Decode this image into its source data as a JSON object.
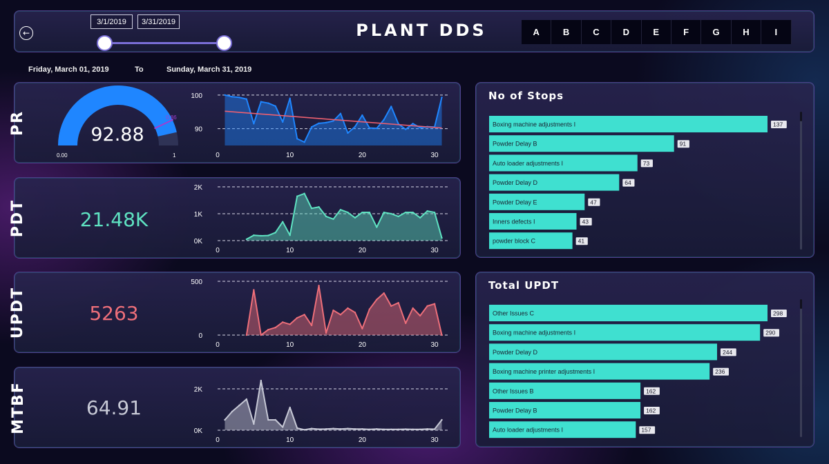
{
  "header": {
    "title": "PLANT DDS",
    "back_icon": "arrow-left-icon",
    "date_start": "3/1/2019",
    "date_end": "3/31/2019",
    "filters": [
      "A",
      "B",
      "C",
      "D",
      "E",
      "F",
      "G",
      "H",
      "I"
    ]
  },
  "range": {
    "from_text": "Friday, March 01, 2019",
    "to_label": "To",
    "to_text": "Sunday, March 31, 2019"
  },
  "colors": {
    "pr": "#1f86ff",
    "pdt": "#5fe3c2",
    "updt": "#ee6f7a",
    "mtbf": "#c7c9d6",
    "bar": "#3fe0d0",
    "trend": "#ee6070"
  },
  "kpis": {
    "pr": {
      "label": "PR",
      "value": "92.88",
      "gauge_min": "0.00",
      "gauge_max": "1",
      "gauge_target": "0.86",
      "gauge_fill": 0.9288,
      "gauge_target_fraction": 0.86
    },
    "pdt": {
      "label": "PDT",
      "value": "21.48K"
    },
    "updt": {
      "label": "UPDT",
      "value": "5263"
    },
    "mtbf": {
      "label": "MTBF",
      "value": "64.91"
    }
  },
  "chart_data": [
    {
      "id": "pr",
      "type": "area",
      "x": [
        1,
        2,
        3,
        4,
        5,
        6,
        7,
        8,
        9,
        10,
        11,
        12,
        13,
        14,
        15,
        16,
        17,
        18,
        19,
        20,
        21,
        22,
        23,
        24,
        25,
        26,
        27,
        28,
        29,
        30,
        31
      ],
      "values": [
        100,
        99.5,
        99.3,
        98.8,
        91.5,
        98,
        97.6,
        96.7,
        92,
        99,
        87,
        86,
        90.5,
        91.6,
        91.8,
        92.3,
        94.5,
        88.7,
        90.6,
        94,
        90.2,
        90.1,
        92.7,
        96.6,
        91.4,
        89.8,
        91.5,
        90.3,
        90.6,
        90.5,
        99.3
      ],
      "trend": [
        95.2,
        90.2
      ],
      "ylim": [
        85,
        101
      ],
      "yticks": [
        90,
        100
      ],
      "xticks": [
        0,
        10,
        20,
        30
      ],
      "xlim": [
        0,
        32
      ]
    },
    {
      "id": "pdt",
      "type": "area",
      "x": [
        4,
        5,
        6,
        7,
        8,
        9,
        10,
        11,
        12,
        13,
        14,
        15,
        16,
        17,
        18,
        19,
        20,
        21,
        22,
        23,
        24,
        25,
        26,
        27,
        28,
        29,
        30,
        31
      ],
      "values": [
        50,
        200,
        180,
        190,
        300,
        700,
        200,
        1650,
        1750,
        1200,
        1250,
        900,
        800,
        1150,
        1050,
        850,
        1050,
        1050,
        500,
        1050,
        1000,
        900,
        1050,
        1050,
        850,
        1100,
        1050,
        100
      ],
      "ylim": [
        0,
        2000
      ],
      "yticks": [
        0,
        1000,
        2000
      ],
      "ytick_labels": [
        "0K",
        "1K",
        "2K"
      ],
      "xticks": [
        0,
        10,
        20,
        30
      ],
      "xlim": [
        0,
        32
      ]
    },
    {
      "id": "updt",
      "type": "area",
      "x": [
        4,
        5,
        6,
        7,
        8,
        9,
        10,
        11,
        12,
        13,
        14,
        15,
        16,
        17,
        18,
        19,
        20,
        21,
        22,
        23,
        24,
        25,
        26,
        27,
        28,
        29,
        30,
        31
      ],
      "values": [
        0,
        420,
        0,
        50,
        70,
        120,
        100,
        160,
        190,
        90,
        460,
        20,
        230,
        190,
        250,
        210,
        60,
        240,
        330,
        390,
        270,
        300,
        110,
        250,
        180,
        270,
        290,
        0
      ],
      "ylim": [
        0,
        500
      ],
      "yticks": [
        0,
        500
      ],
      "xticks": [
        0,
        10,
        20,
        30
      ],
      "xlim": [
        0,
        32
      ]
    },
    {
      "id": "mtbf",
      "type": "area",
      "x": [
        1,
        2,
        3,
        4,
        5,
        6,
        7,
        8,
        9,
        10,
        11,
        12,
        13,
        14,
        15,
        16,
        17,
        18,
        19,
        20,
        21,
        22,
        23,
        24,
        25,
        26,
        27,
        28,
        29,
        30,
        31
      ],
      "values": [
        500,
        900,
        1200,
        1500,
        300,
        2400,
        500,
        500,
        150,
        1100,
        100,
        20,
        80,
        50,
        60,
        80,
        60,
        80,
        60,
        60,
        40,
        60,
        40,
        40,
        40,
        50,
        40,
        40,
        60,
        50,
        500
      ],
      "ylim": [
        0,
        2600
      ],
      "yticks": [
        0,
        2000
      ],
      "ytick_labels": [
        "0K",
        "2K"
      ],
      "xticks": [
        0,
        10,
        20,
        30
      ],
      "xlim": [
        0,
        32
      ]
    },
    {
      "id": "stops",
      "type": "bar",
      "title": "No of Stops",
      "categories": [
        "Boxing machine adjustments I",
        "Powder Delay B",
        "Auto loader adjustments I",
        "Powder Delay D",
        "Powder Delay E",
        "Inners defects I",
        "powder block C"
      ],
      "values": [
        137,
        91,
        73,
        64,
        47,
        43,
        41
      ],
      "xlim": [
        0,
        137
      ]
    },
    {
      "id": "updt_bars",
      "type": "bar",
      "title": "Total UPDT",
      "categories": [
        "Other Issues C",
        "Boxing machine adjustments I",
        "Powder Delay D",
        "Boxing machine printer adjustments I",
        "Other Issues B",
        "Powder Delay B",
        "Auto loader adjustments I"
      ],
      "values": [
        298,
        290,
        244,
        236,
        162,
        162,
        157
      ],
      "xlim": [
        0,
        298
      ]
    }
  ]
}
